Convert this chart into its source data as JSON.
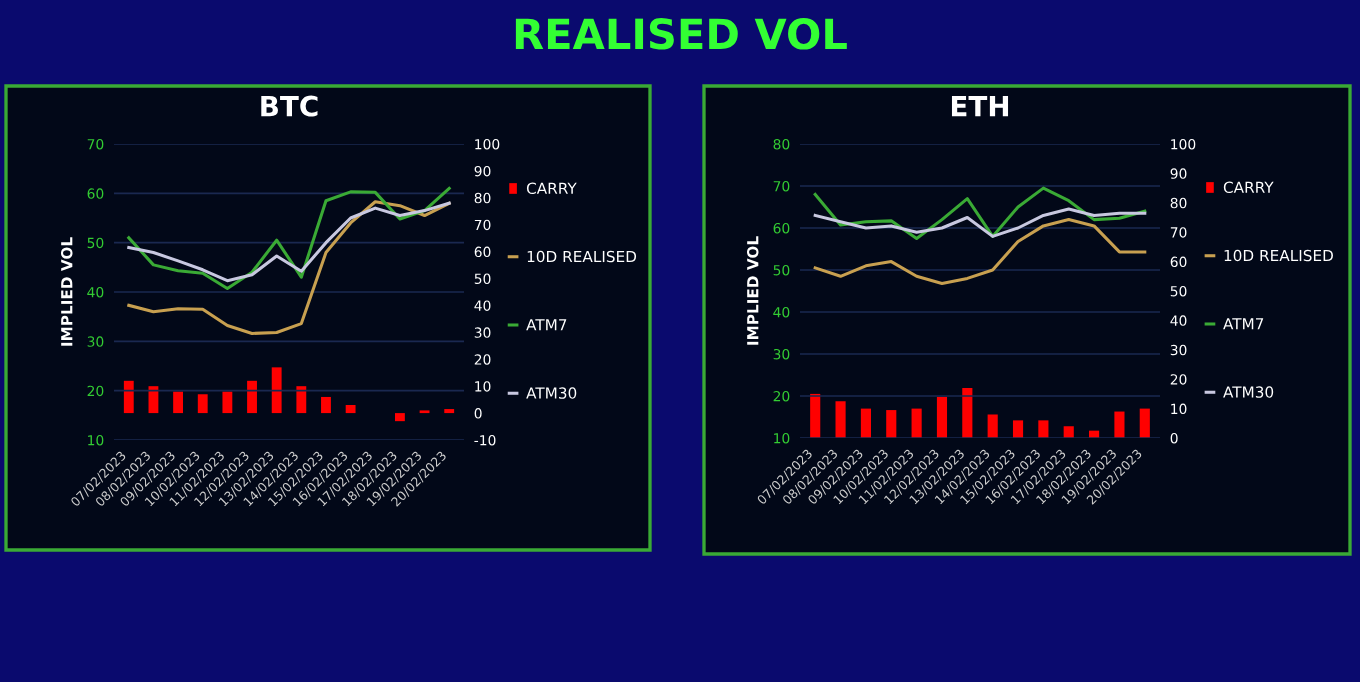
{
  "chart_data": [
    {
      "type": "line",
      "title": "BTC",
      "ylabel": "IMPLIED VOL",
      "annotations": [
        "REALISED VOL"
      ],
      "categories": [
        "07/02/2023",
        "08/02/2023",
        "09/02/2023",
        "10/02/2023",
        "11/02/2023",
        "12/02/2023",
        "13/02/2023",
        "14/02/2023",
        "15/02/2023",
        "16/02/2023",
        "17/02/2023",
        "18/02/2023",
        "19/02/2023",
        "20/02/2023"
      ],
      "series": [
        {
          "name": "CARRY",
          "type": "bar",
          "axis": "y2",
          "color": "#ff0000",
          "values": [
            12,
            10,
            8,
            7,
            8,
            12,
            17,
            10,
            6,
            3,
            null,
            -3,
            1,
            1.5
          ]
        },
        {
          "name": "10D REALISED",
          "color": "#c8a050",
          "values": [
            37.3,
            36,
            36.6,
            36.5,
            33.2,
            31.6,
            31.8,
            33.6,
            48,
            54,
            58.3,
            57.5,
            55.5,
            58
          ]
        },
        {
          "name": "ATM7",
          "color": "#3aaa35",
          "values": [
            51,
            45.5,
            44.3,
            43.8,
            40.7,
            44,
            50.5,
            43,
            58.5,
            60.3,
            60.2,
            54.8,
            56.5,
            61
          ]
        },
        {
          "name": "ATM30",
          "color": "#c8c8e0",
          "values": [
            49,
            48,
            46.3,
            44.5,
            42.3,
            43.5,
            47.3,
            44.2,
            50,
            55,
            57,
            55.5,
            56.5,
            58
          ]
        }
      ],
      "ylim": [
        10,
        70
      ],
      "yticks": [
        10,
        20,
        30,
        40,
        50,
        60,
        70
      ],
      "y2lim": [
        -10,
        100
      ],
      "y2ticks": [
        -10,
        0,
        10,
        20,
        30,
        40,
        50,
        60,
        70,
        80,
        90,
        100
      ],
      "grid": "y",
      "legend": "right",
      "marker": "none"
    },
    {
      "type": "line",
      "title": "ETH",
      "ylabel": "IMPLIED VOL",
      "categories": [
        "07/02/2023",
        "08/02/2023",
        "09/02/2023",
        "10/02/2023",
        "11/02/2023",
        "12/02/2023",
        "13/02/2023",
        "14/02/2023",
        "15/02/2023",
        "16/02/2023",
        "17/02/2023",
        "18/02/2023",
        "19/02/2023",
        "20/02/2023"
      ],
      "series": [
        {
          "name": "CARRY",
          "type": "bar",
          "axis": "y2",
          "color": "#ff0000",
          "values": [
            15,
            12.5,
            10,
            9.5,
            10,
            14,
            17,
            8,
            6,
            6,
            4,
            2.5,
            9,
            10
          ]
        },
        {
          "name": "10D REALISED",
          "color": "#c8a050",
          "values": [
            50.5,
            48.5,
            51,
            52,
            48.5,
            46.8,
            48,
            50,
            56.8,
            60.5,
            62,
            60.5,
            54.3,
            54.3
          ]
        },
        {
          "name": "ATM7",
          "color": "#3aaa35",
          "values": [
            68,
            60.7,
            61.5,
            61.7,
            57.5,
            62,
            67,
            58,
            65,
            69.5,
            66.5,
            62,
            62.3,
            64
          ]
        },
        {
          "name": "ATM30",
          "color": "#c8c8e0",
          "values": [
            63,
            61.5,
            60,
            60.5,
            59,
            60,
            62.5,
            58,
            60,
            63,
            64.5,
            63,
            63.5,
            63.5
          ]
        }
      ],
      "ylim": [
        10,
        80
      ],
      "yticks": [
        10,
        20,
        30,
        40,
        50,
        60,
        70,
        80
      ],
      "y2lim": [
        0,
        100
      ],
      "y2ticks": [
        0,
        10,
        20,
        30,
        40,
        50,
        60,
        70,
        80,
        90,
        100
      ],
      "grid": "y",
      "legend": "right",
      "marker": "none"
    }
  ]
}
